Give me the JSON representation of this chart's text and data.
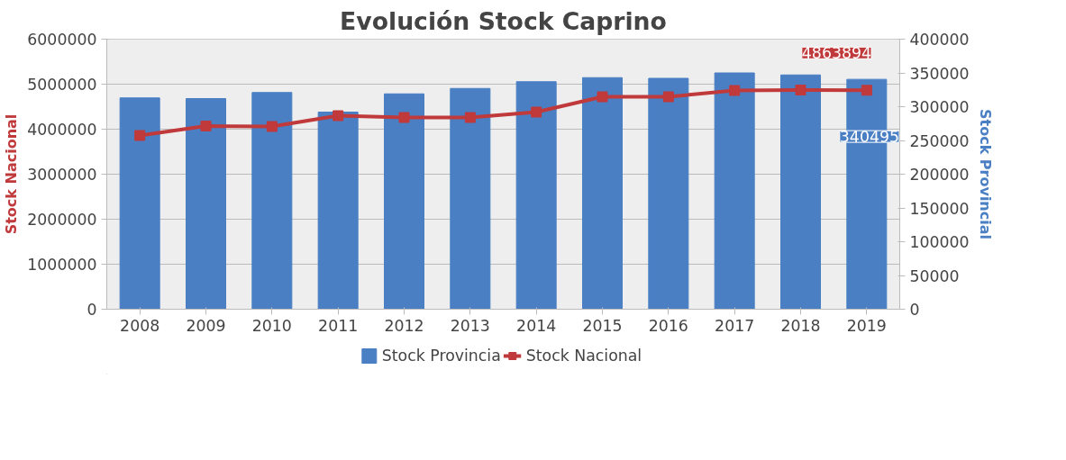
{
  "chart_data": {
    "type": "bar",
    "title": "Evolución Stock Caprino",
    "categories": [
      "2008",
      "2009",
      "2010",
      "2011",
      "2012",
      "2013",
      "2014",
      "2015",
      "2016",
      "2017",
      "2018",
      "2019"
    ],
    "series": [
      {
        "name": "Stock Provincia",
        "axis": "y2",
        "color": "#4a7fc4",
        "values": [
          313000,
          312000,
          321000,
          292000,
          319000,
          327000,
          337000,
          343000,
          342000,
          350000,
          347000,
          340495
        ],
        "value_labels": [
          null,
          null,
          null,
          null,
          null,
          null,
          null,
          null,
          null,
          null,
          null,
          "340495"
        ]
      },
      {
        "name": "Stock Nacional",
        "type": "line",
        "axis": "y",
        "color": "#c0393b",
        "marker": "square",
        "values": [
          3860000,
          4070000,
          4060000,
          4300000,
          4260000,
          4260000,
          4380000,
          4720000,
          4720000,
          4860000,
          4870000,
          4863894
        ],
        "value_labels": [
          null,
          null,
          null,
          null,
          null,
          null,
          null,
          null,
          null,
          null,
          null,
          "4863894"
        ]
      }
    ],
    "ylabel": "Stock Nacional",
    "y2label": "Stock Provincial",
    "ylim": [
      0,
      6000000
    ],
    "yticks": [
      0,
      1000000,
      2000000,
      3000000,
      4000000,
      5000000,
      6000000
    ],
    "y2lim": [
      0,
      400000
    ],
    "y2ticks": [
      0,
      50000,
      100000,
      150000,
      200000,
      250000,
      300000,
      350000,
      400000
    ],
    "grid": "y",
    "legend": "bottom"
  }
}
